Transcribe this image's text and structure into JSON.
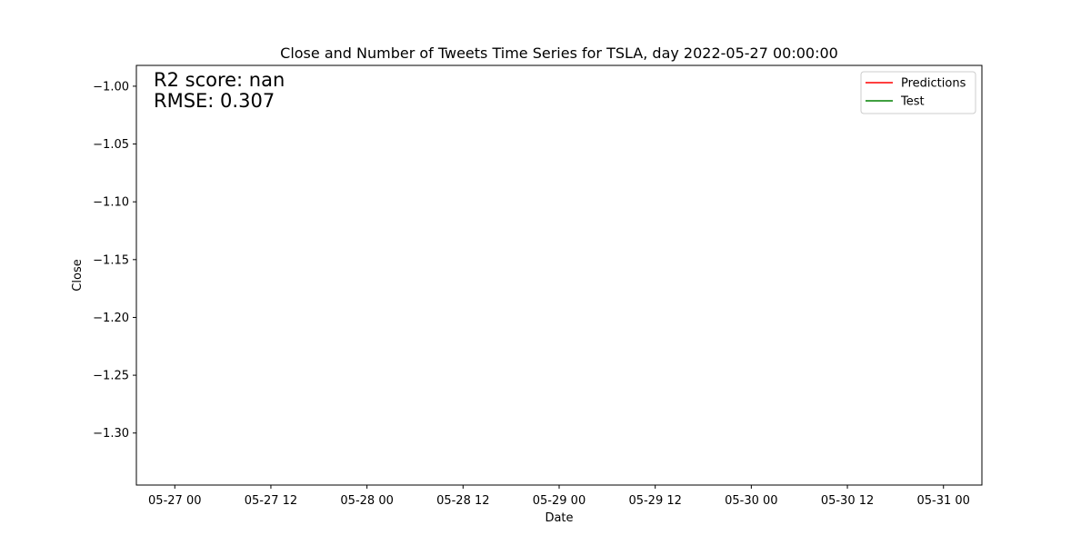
{
  "chart_data": {
    "type": "line",
    "title": "Close and Number of Tweets Time Series for TSLA, day 2022-05-27 00:00:00",
    "xlabel": "Date",
    "ylabel": "Close",
    "x_tick_labels": [
      "05-27 00",
      "05-27 12",
      "05-28 00",
      "05-28 12",
      "05-29 00",
      "05-29 12",
      "05-30 00",
      "05-30 12",
      "05-31 00"
    ],
    "x_ticks": [
      "2022-05-27T00:00",
      "2022-05-27T12:00",
      "2022-05-28T00:00",
      "2022-05-28T12:00",
      "2022-05-29T00:00",
      "2022-05-29T12:00",
      "2022-05-30T00:00",
      "2022-05-30T12:00",
      "2022-05-31T00:00"
    ],
    "xlim": [
      "2022-05-26T19:12",
      "2022-05-31T04:48"
    ],
    "y_ticks": [
      -1.0,
      -1.05,
      -1.1,
      -1.15,
      -1.2,
      -1.25,
      -1.3
    ],
    "y_tick_labels": [
      "−1.00",
      "−1.05",
      "−1.10",
      "−1.15",
      "−1.20",
      "−1.25",
      "−1.30"
    ],
    "ylim": [
      -1.345,
      -0.982
    ],
    "grid": false,
    "legend_position": "top-right",
    "series": [
      {
        "name": "Predictions",
        "color": "#ff0000",
        "values": []
      },
      {
        "name": "Test",
        "color": "#008000",
        "values": []
      }
    ],
    "annotations": [
      "R2 score: nan",
      "RMSE: 0.307"
    ]
  }
}
